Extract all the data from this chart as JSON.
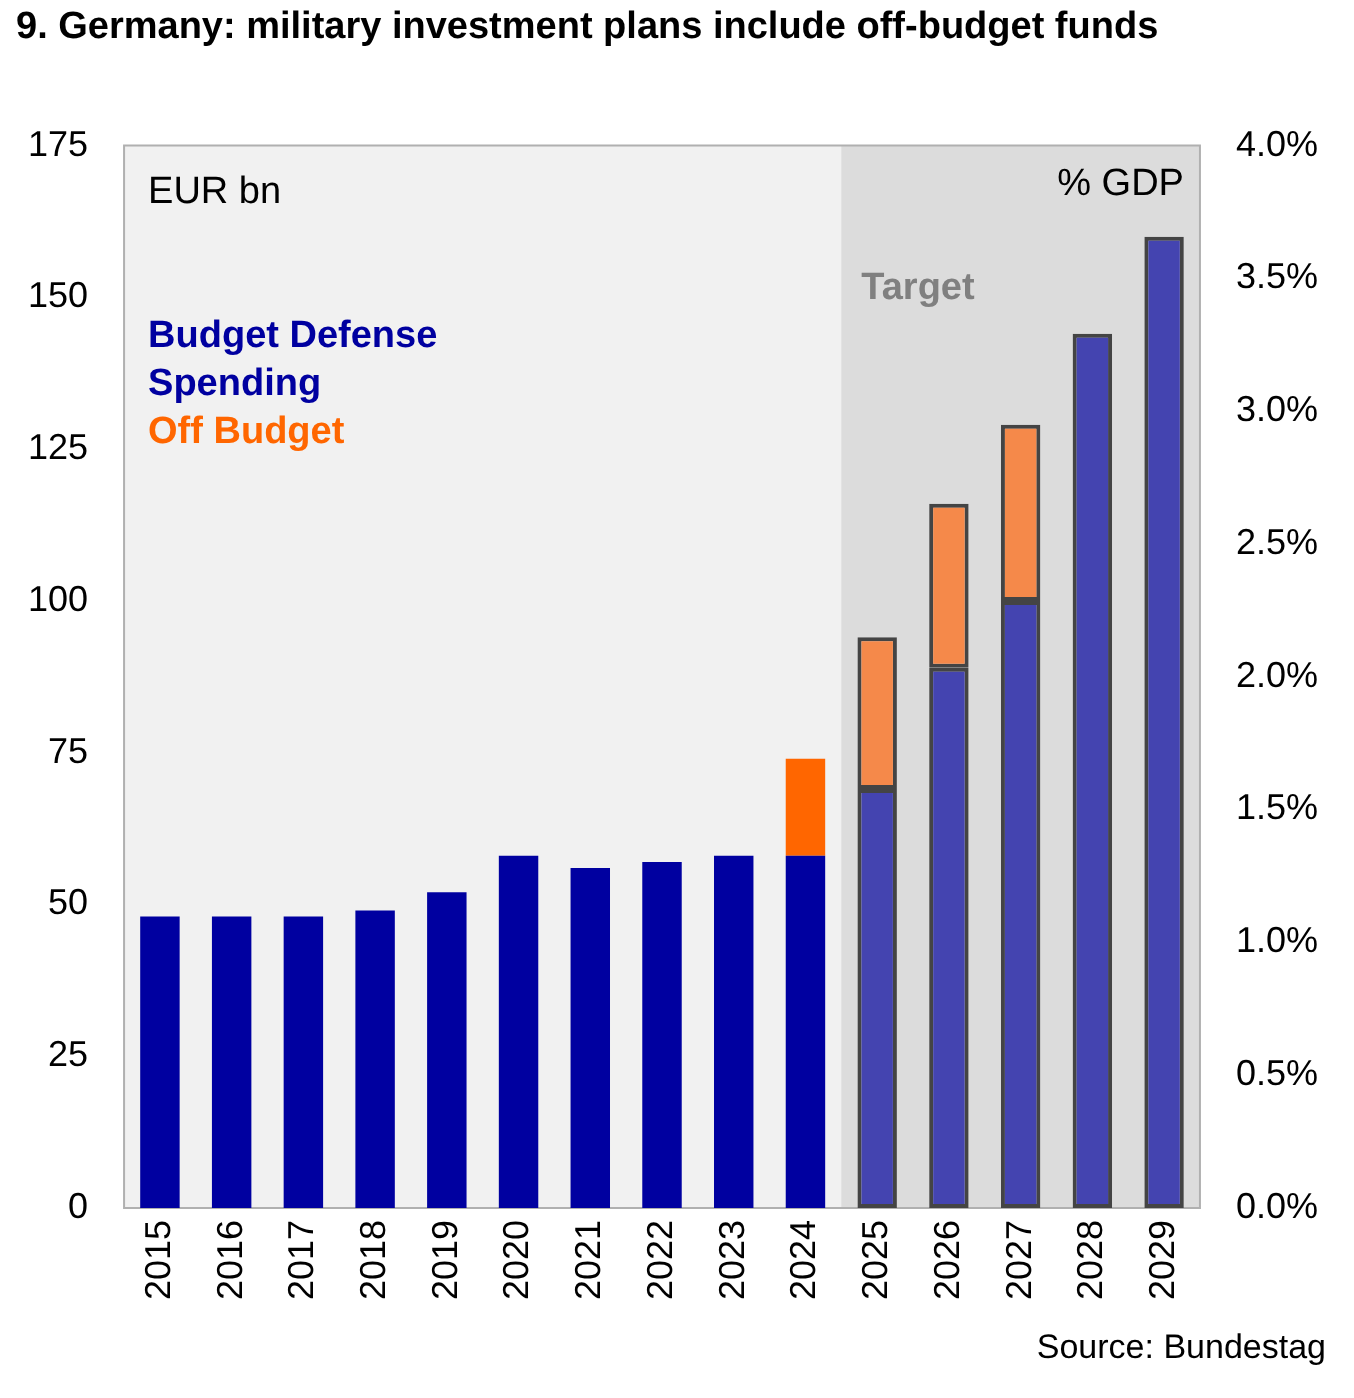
{
  "chart_data": {
    "type": "bar",
    "title": "9. Germany: military investment plans include off-budget funds",
    "ylabel": "EUR bn",
    "y2label": "% GDP",
    "categories": [
      "2015",
      "2016",
      "2017",
      "2018",
      "2019",
      "2020",
      "2021",
      "2022",
      "2023",
      "2024",
      "2025",
      "2026",
      "2027",
      "2028",
      "2029"
    ],
    "stacked": true,
    "series": [
      {
        "name": "Budget Defense Spending",
        "color": "#0000a0",
        "colors": [
          "#0000a0",
          "#0000a0",
          "#0000a0",
          "#0000a0",
          "#0000a0",
          "#0000a0",
          "#0000a0",
          "#0000a0",
          "#0000a0",
          "#0000a0",
          "#4444b0",
          "#4444b0",
          "#4444b0",
          "#4444b0",
          "#4444b0"
        ],
        "values": [
          48,
          48,
          48,
          49,
          52,
          58,
          56,
          57,
          58,
          58,
          69,
          89,
          100,
          144,
          160
        ]
      },
      {
        "name": "Off Budget",
        "color": "#ff6600",
        "colors": [
          "#ff6600",
          "#ff6600",
          "#ff6600",
          "#ff6600",
          "#ff6600",
          "#ff6600",
          "#ff6600",
          "#ff6600",
          "#ff6600",
          "#ff6600",
          "#f5894a",
          "#f5894a",
          "#f5894a",
          "#f5894a",
          "#f5894a"
        ],
        "values": [
          null,
          null,
          null,
          null,
          null,
          null,
          null,
          null,
          null,
          16,
          25,
          27,
          29,
          null,
          null
        ]
      }
    ],
    "ylim": [
      0,
      175
    ],
    "yticks": [
      0,
      25,
      50,
      75,
      100,
      125,
      150,
      175
    ],
    "y2lim": [
      0,
      4
    ],
    "y2ticks": [
      {
        "value": 0,
        "label": "0.0%"
      },
      {
        "value": 0.5,
        "label": "0.5%"
      },
      {
        "value": 1,
        "label": "1.0%"
      },
      {
        "value": 1.5,
        "label": "1.5%"
      },
      {
        "value": 2,
        "label": "2.0%"
      },
      {
        "value": 2.5,
        "label": "2.5%"
      },
      {
        "value": 3,
        "label": "3.0%"
      },
      {
        "value": 3.5,
        "label": "3.5%"
      },
      {
        "value": 4,
        "label": "4.0%"
      }
    ],
    "bands": [
      {
        "axis": "x",
        "from": "2025",
        "to": "2029",
        "label": "Target",
        "color": "#dcdcdc"
      }
    ],
    "legend": "top left",
    "grid": false,
    "annotations": [
      "Source: Bundestag"
    ]
  }
}
